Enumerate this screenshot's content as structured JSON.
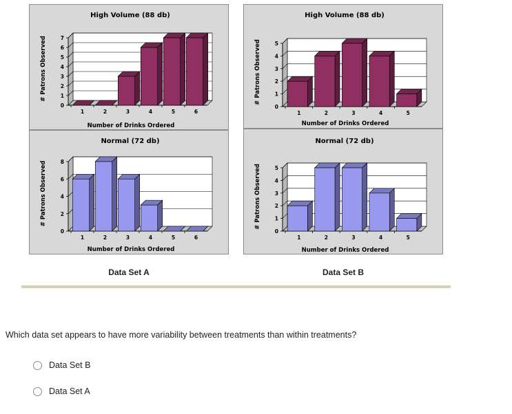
{
  "chart_data": [
    {
      "id": "A-high",
      "type": "bar",
      "title": "High Volume (88 db)",
      "xlabel": "Number of Drinks Ordered",
      "ylabel": "# Patrons Observed",
      "categories": [
        "1",
        "2",
        "3",
        "4",
        "5",
        "6"
      ],
      "values": [
        0,
        0,
        3,
        6,
        7,
        7
      ],
      "ylim": [
        0,
        7
      ],
      "yticks": [
        0,
        1,
        2,
        3,
        4,
        5,
        6,
        7
      ],
      "color": "#8f2f62"
    },
    {
      "id": "B-high",
      "type": "bar",
      "title": "High Volume (88 db)",
      "xlabel": "Number of Drinks Ordered",
      "ylabel": "# Patrons Observed",
      "categories": [
        "1",
        "2",
        "3",
        "4",
        "5"
      ],
      "values": [
        2,
        4,
        5,
        4,
        1
      ],
      "ylim": [
        0,
        5
      ],
      "yticks": [
        0,
        1,
        2,
        3,
        4,
        5
      ],
      "color": "#8f2f62"
    },
    {
      "id": "A-normal",
      "type": "bar",
      "title": "Normal (72 db)",
      "xlabel": "Number of Drinks Ordered",
      "ylabel": "# Patrons Observed",
      "categories": [
        "1",
        "2",
        "3",
        "4",
        "5",
        "6"
      ],
      "values": [
        6,
        8,
        6,
        3,
        0,
        0
      ],
      "ylim": [
        0,
        8
      ],
      "yticks": [
        0,
        2,
        4,
        6,
        8
      ],
      "color": "#9898ee"
    },
    {
      "id": "B-normal",
      "type": "bar",
      "title": "Normal (72 db)",
      "xlabel": "Number of Drinks Ordered",
      "ylabel": "# Patrons Observed",
      "categories": [
        "1",
        "2",
        "3",
        "4",
        "5"
      ],
      "values": [
        2,
        5,
        5,
        3,
        1
      ],
      "ylim": [
        0,
        5
      ],
      "yticks": [
        0,
        1,
        2,
        3,
        4,
        5
      ],
      "color": "#9898ee"
    }
  ],
  "labels": {
    "set_a": "Data Set A",
    "set_b": "Data Set B"
  },
  "question": "Which data set appears to have more variability between treatments than within treatments?",
  "options": [
    "Data Set B",
    "Data Set A"
  ]
}
